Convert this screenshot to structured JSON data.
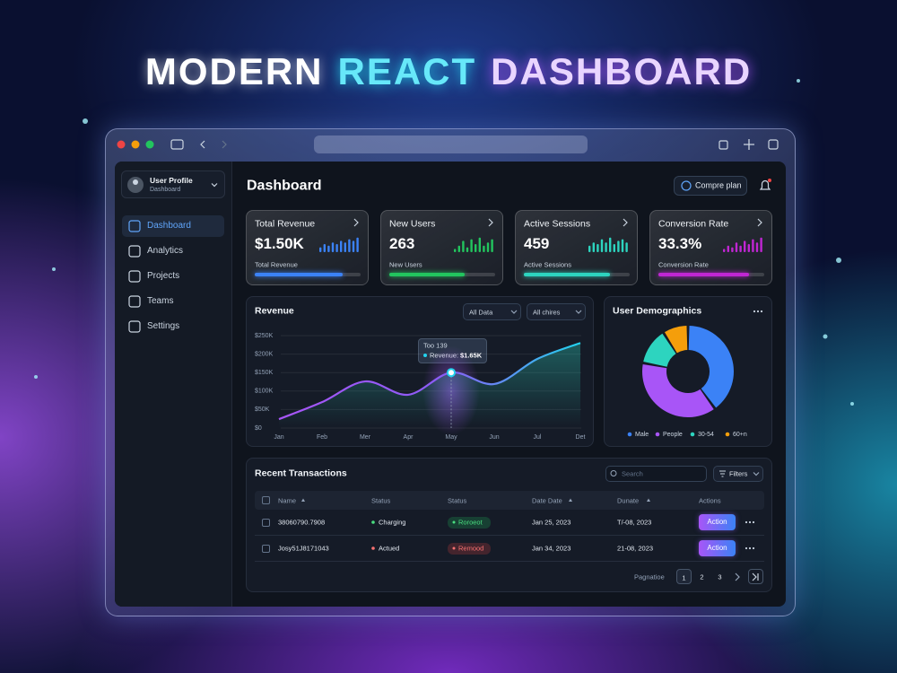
{
  "banner": {
    "words": [
      "MODERN",
      "REACT",
      "DASHBOARD"
    ]
  },
  "sidebar": {
    "profile": {
      "name": "User Profile",
      "role": "Dashboard"
    },
    "items": [
      "Dashboard",
      "Analytics",
      "Projects",
      "Teams",
      "Settings"
    ]
  },
  "header": {
    "title": "Dashboard",
    "button": "Compre plan"
  },
  "cards": [
    {
      "title": "Total Revenue",
      "value": "$1.50K",
      "caption": "Total Revenue",
      "color": "#3b82f6",
      "progress": 83,
      "sparkline": [
        3,
        5,
        4,
        6,
        5,
        7,
        6,
        8,
        7,
        9
      ]
    },
    {
      "title": "New Users",
      "value": "263",
      "caption": "New Users",
      "color": "#22c55e",
      "progress": 71,
      "sparkline": [
        2,
        4,
        7,
        3,
        8,
        5,
        9,
        4,
        6,
        8
      ]
    },
    {
      "title": "Active Sessions",
      "value": "459",
      "caption": "Active Sessions",
      "color": "#2dd4bf",
      "progress": 81,
      "sparkline": [
        4,
        6,
        5,
        8,
        6,
        9,
        5,
        7,
        8,
        6
      ]
    },
    {
      "title": "Conversion Rate",
      "value": "33.3%",
      "caption": "Conversion Rate",
      "color": "#c026d3",
      "progress": 86,
      "sparkline": [
        2,
        4,
        3,
        6,
        4,
        7,
        5,
        8,
        6,
        9
      ]
    }
  ],
  "revenue": {
    "title": "Revenue",
    "filters": [
      "All Data",
      "All chires"
    ],
    "categories": [
      "Jan",
      "Feb",
      "Mer",
      "Apr",
      "May",
      "Jun",
      "Jul",
      "Det"
    ],
    "values": [
      24000,
      70000,
      126000,
      90000,
      150000,
      119000,
      187000,
      230000
    ],
    "ylim": [
      0,
      250000
    ],
    "yticks": [
      {
        "value": 0,
        "label": "$0"
      },
      {
        "value": 50000,
        "label": "$50K"
      },
      {
        "value": 100000,
        "label": "$100K"
      },
      {
        "value": 150000,
        "label": "$150K"
      },
      {
        "value": 200000,
        "label": "$200K"
      },
      {
        "value": 250000,
        "label": "$250K"
      }
    ],
    "tooltip": {
      "title": "Too 139",
      "label": "Revenue:",
      "value": "$1.65K"
    }
  },
  "demographics": {
    "title": "User Demographics",
    "segments": [
      {
        "name": "Male",
        "value": 40,
        "color": "#3b82f6"
      },
      {
        "name": "People",
        "value": 38,
        "color": "#a855f7"
      },
      {
        "name": "30-54",
        "value": 13,
        "color": "#2dd4bf"
      },
      {
        "name": "60+n",
        "value": 9,
        "color": "#f59e0b"
      }
    ]
  },
  "transactions": {
    "title": "Recent Transactions",
    "search": "Search",
    "filter": "Filters",
    "columns": [
      "Name",
      "Status",
      "Status",
      "Date Date",
      "Dunate",
      "Actions"
    ],
    "rows": [
      [
        "38060790.7908",
        "Charging",
        "Roroeot",
        "Jan 25, 2023",
        "T/-08, 2023",
        "Action"
      ],
      [
        "Josy51J8171043",
        "Actued",
        "Remood",
        "Jan 34, 2023",
        "21-08, 2023",
        "Action"
      ]
    ],
    "pagination": {
      "label": "Pagnatioe",
      "pages": [
        1,
        2,
        3
      ]
    }
  }
}
